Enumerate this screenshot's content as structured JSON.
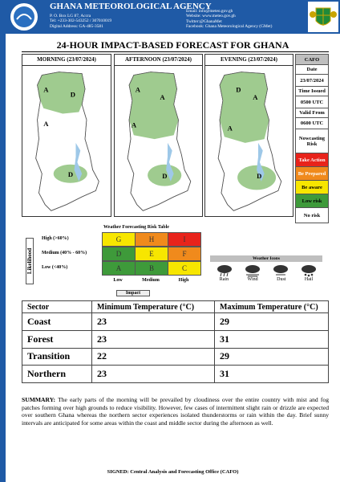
{
  "header": {
    "agency": "GHANA METEOROLOGICAL AGENCY",
    "address": [
      "P. O. Box LG 87, Accra",
      "Tel: +233-302-543252 / 307010019",
      "Digital Address: GA-485-3581"
    ],
    "contact": [
      "Email: info@meteo.gov.gh",
      "Website: www.meteo.gov.gh",
      "Twitter:@GhanaMet",
      "Facebook: Ghana Meteorological Agency (GMet)"
    ]
  },
  "title": "24-HOUR IMPACT-BASED FORECAST FOR GHANA",
  "panels": [
    {
      "heading": "MORNING  (23/07/2024)",
      "labels": [
        "A",
        "D",
        "A",
        "D"
      ]
    },
    {
      "heading": "AFTERNOON (23/07/2024)",
      "labels": [
        "A",
        "A",
        "A",
        "D"
      ]
    },
    {
      "heading": "EVENING (23/07/2024)",
      "labels": [
        "D",
        "A",
        "A",
        "D"
      ]
    }
  ],
  "cafo": {
    "title": "CAFO",
    "date_label": "Date",
    "date": "23/07/2024",
    "issued_label": "Time Issued",
    "issued": "0500 UTC",
    "valid_label": "Valid From",
    "valid": "0600 UTC",
    "risk_label": "Nowcasting Risk",
    "levels": [
      "Take Action",
      "Be Prepared",
      "Be aware",
      "Low risk",
      "No risk"
    ]
  },
  "risk_table": {
    "title": "Weather Forecasting Risk Table",
    "y_axis": "Likelihood",
    "x_axis": "Impact",
    "rows": [
      {
        "label": "High (>60%)",
        "cells": [
          "G",
          "H",
          "I"
        ]
      },
      {
        "label": "Medium (40% - 60%)",
        "cells": [
          "D",
          "E",
          "F"
        ]
      },
      {
        "label": "Low (<40%)",
        "cells": [
          "A",
          "B",
          "C"
        ]
      }
    ],
    "columns": [
      "Low",
      "Medium",
      "High"
    ]
  },
  "weather_icons": {
    "title": "Weather Icons",
    "icons": [
      "Rain",
      "Wind",
      "Dust",
      "Hail"
    ]
  },
  "temperature_table": {
    "headers": [
      "Sector",
      "Minimum Temperature (°C)",
      "Maximum Temperature (°C)"
    ],
    "rows": [
      [
        "Coast",
        23,
        29
      ],
      [
        "Forest",
        23,
        31
      ],
      [
        "Transition",
        22,
        29
      ],
      [
        "Northern",
        23,
        31
      ]
    ]
  },
  "summary": {
    "label": "SUMMARY:",
    "text": "The early parts of the morning will be prevailed by cloudiness over the entire country with mist and fog patches forming over high grounds to reduce visibility. However, few cases of intermittent slight rain or drizzle are expected over southern Ghana whereas the northern sector experiences isolated thunderstorms or rain within the day. Brief sunny intervals are anticipated for some areas within the coast and middle sector during the afternoon as well."
  },
  "signed": "SIGNED: Central Analysis and Forecasting Office (CAFO)"
}
